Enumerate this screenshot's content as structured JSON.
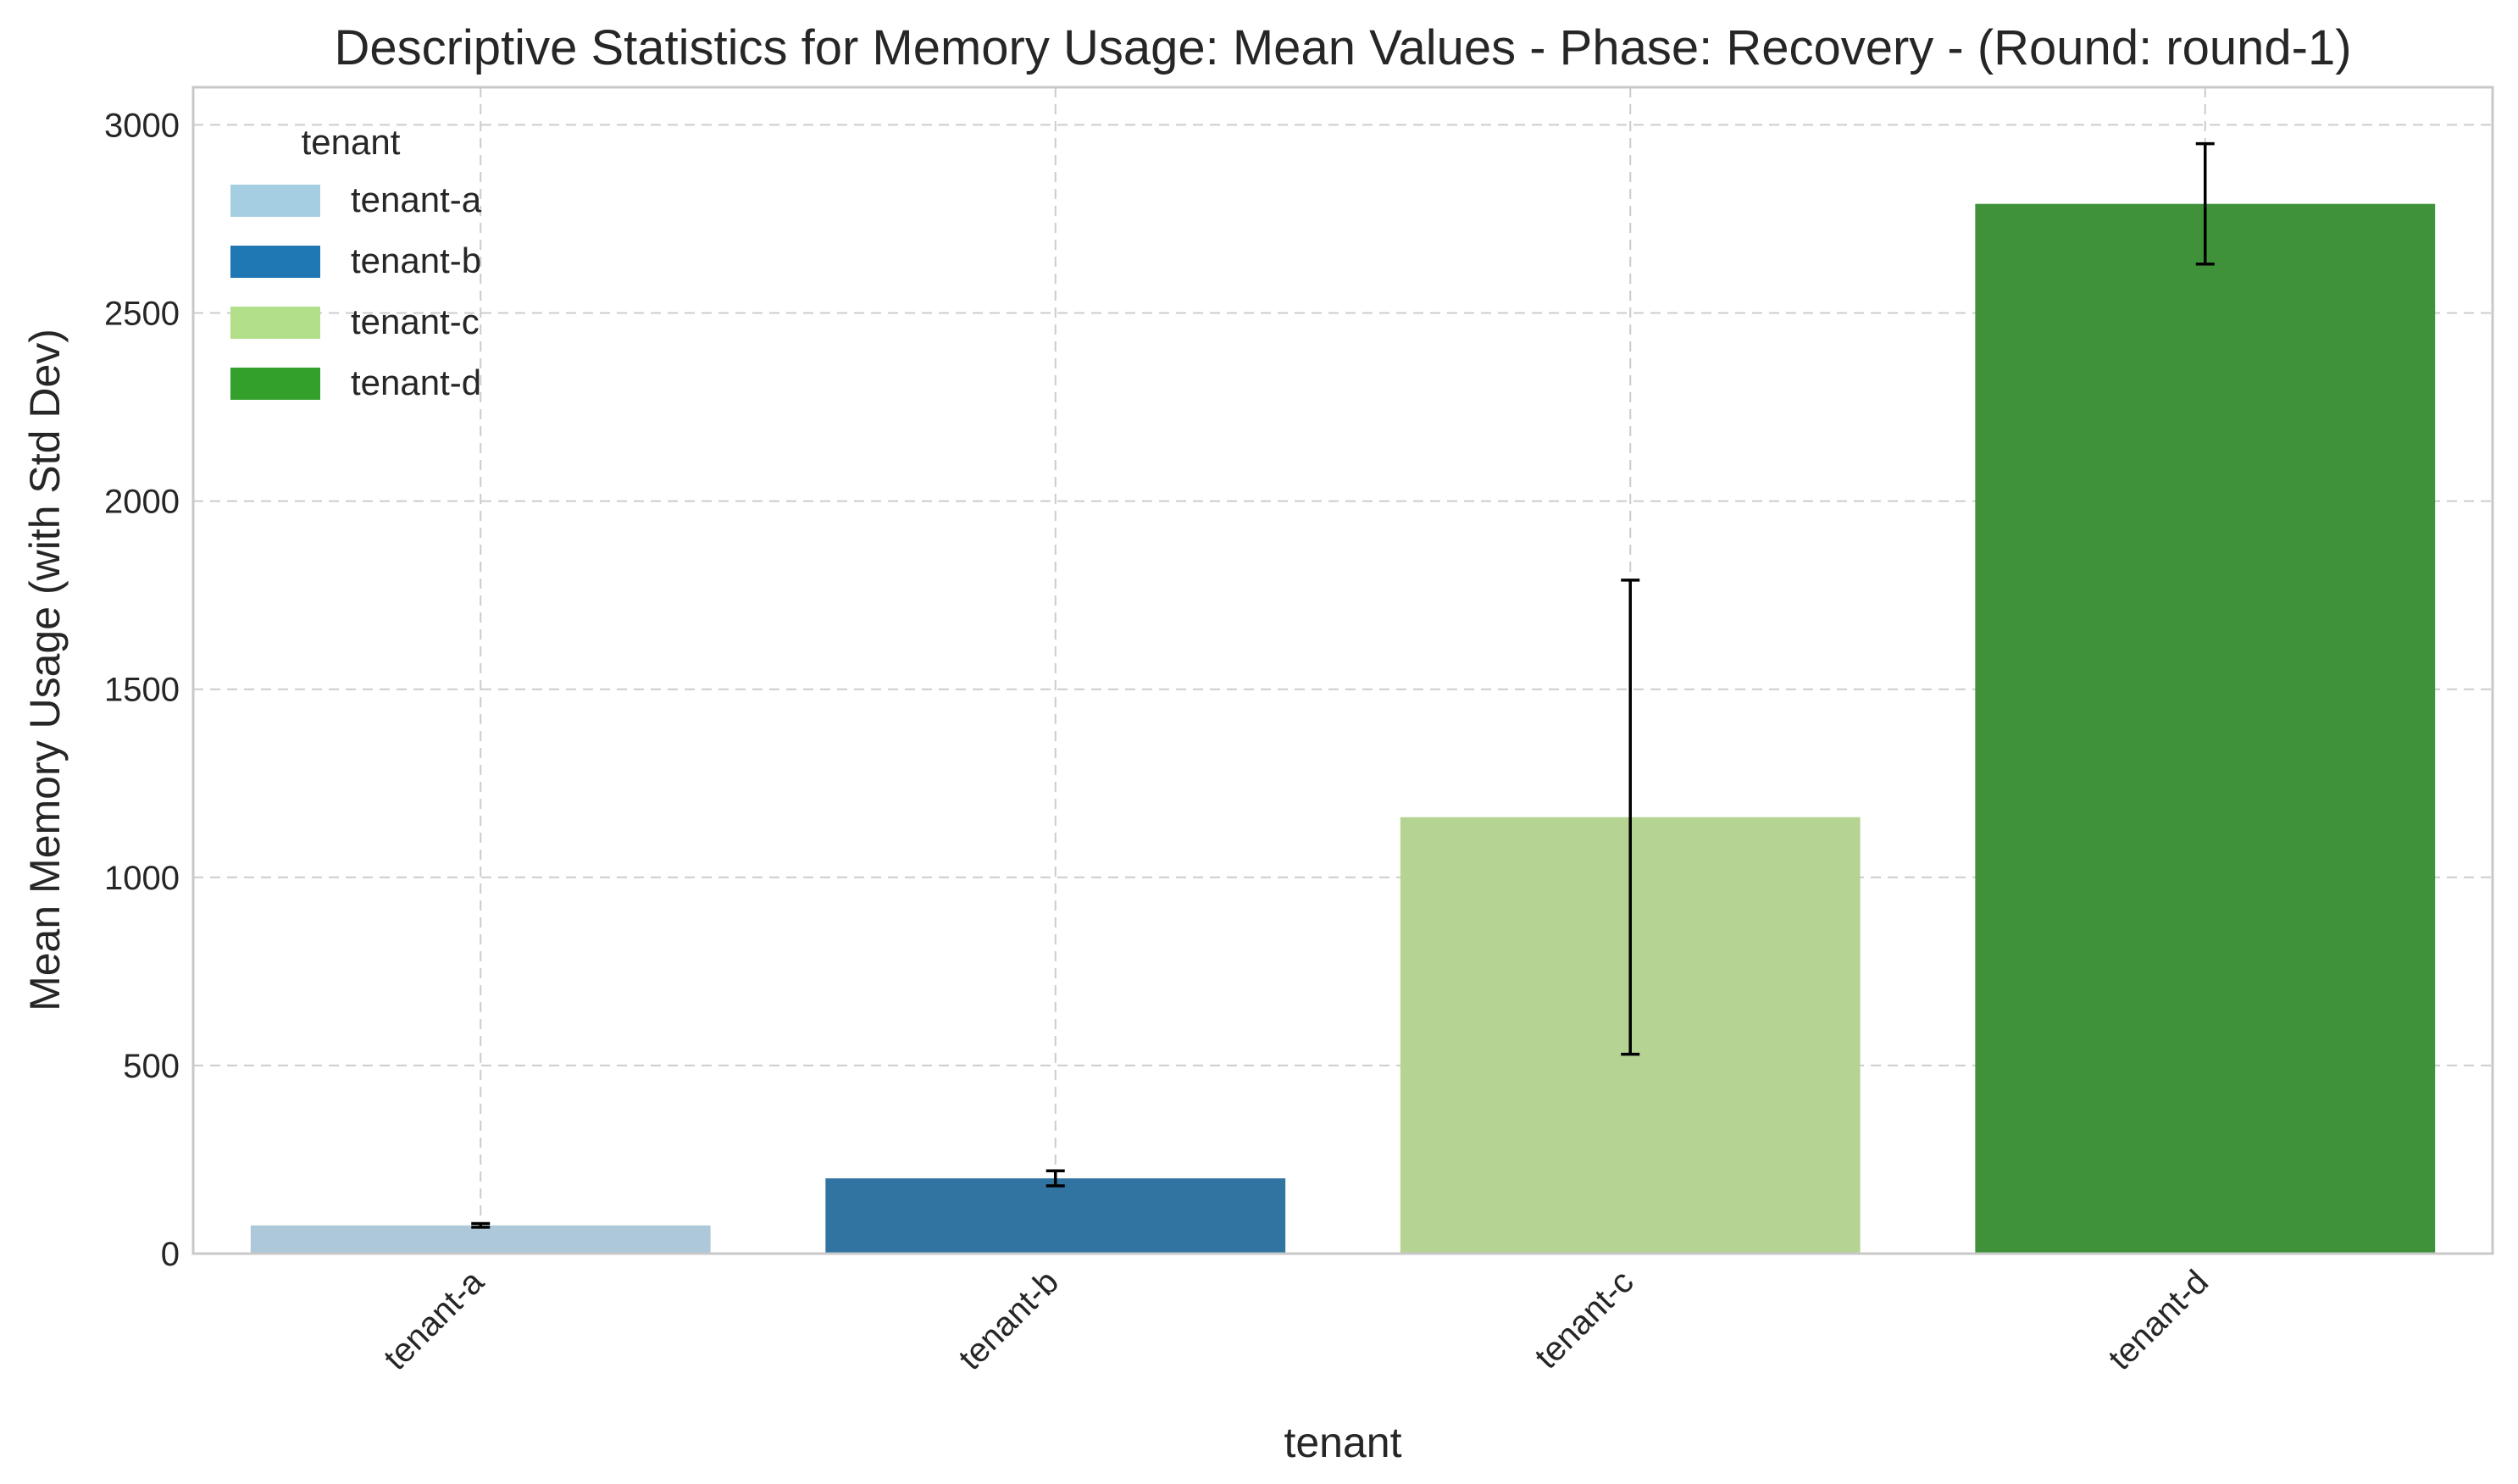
{
  "chart_data": {
    "type": "bar",
    "title": "Descriptive Statistics for Memory Usage: Mean Values - Phase: Recovery - (Round: round-1)",
    "xlabel": "tenant",
    "ylabel": "Mean Memory Usage (with Std Dev)",
    "categories": [
      "tenant-a",
      "tenant-b",
      "tenant-c",
      "tenant-d"
    ],
    "values": [
      75,
      200,
      1160,
      2790
    ],
    "std_dev": [
      5,
      20,
      630,
      160
    ],
    "ylim": [
      0,
      3100
    ],
    "yticks": [
      0,
      500,
      1000,
      1500,
      2000,
      2500,
      3000
    ],
    "grid": true,
    "error_bars": true,
    "legend": {
      "title": "tenant",
      "placement": "top-left",
      "entries": [
        {
          "label": "tenant-a",
          "color": "#a6cee3"
        },
        {
          "label": "tenant-b",
          "color": "#1f78b4"
        },
        {
          "label": "tenant-c",
          "color": "#b2df8a"
        },
        {
          "label": "tenant-d",
          "color": "#33a02c"
        }
      ]
    },
    "bar_colors": [
      "#adc8d9",
      "#3174a1",
      "#b5d493",
      "#3f923a"
    ]
  }
}
